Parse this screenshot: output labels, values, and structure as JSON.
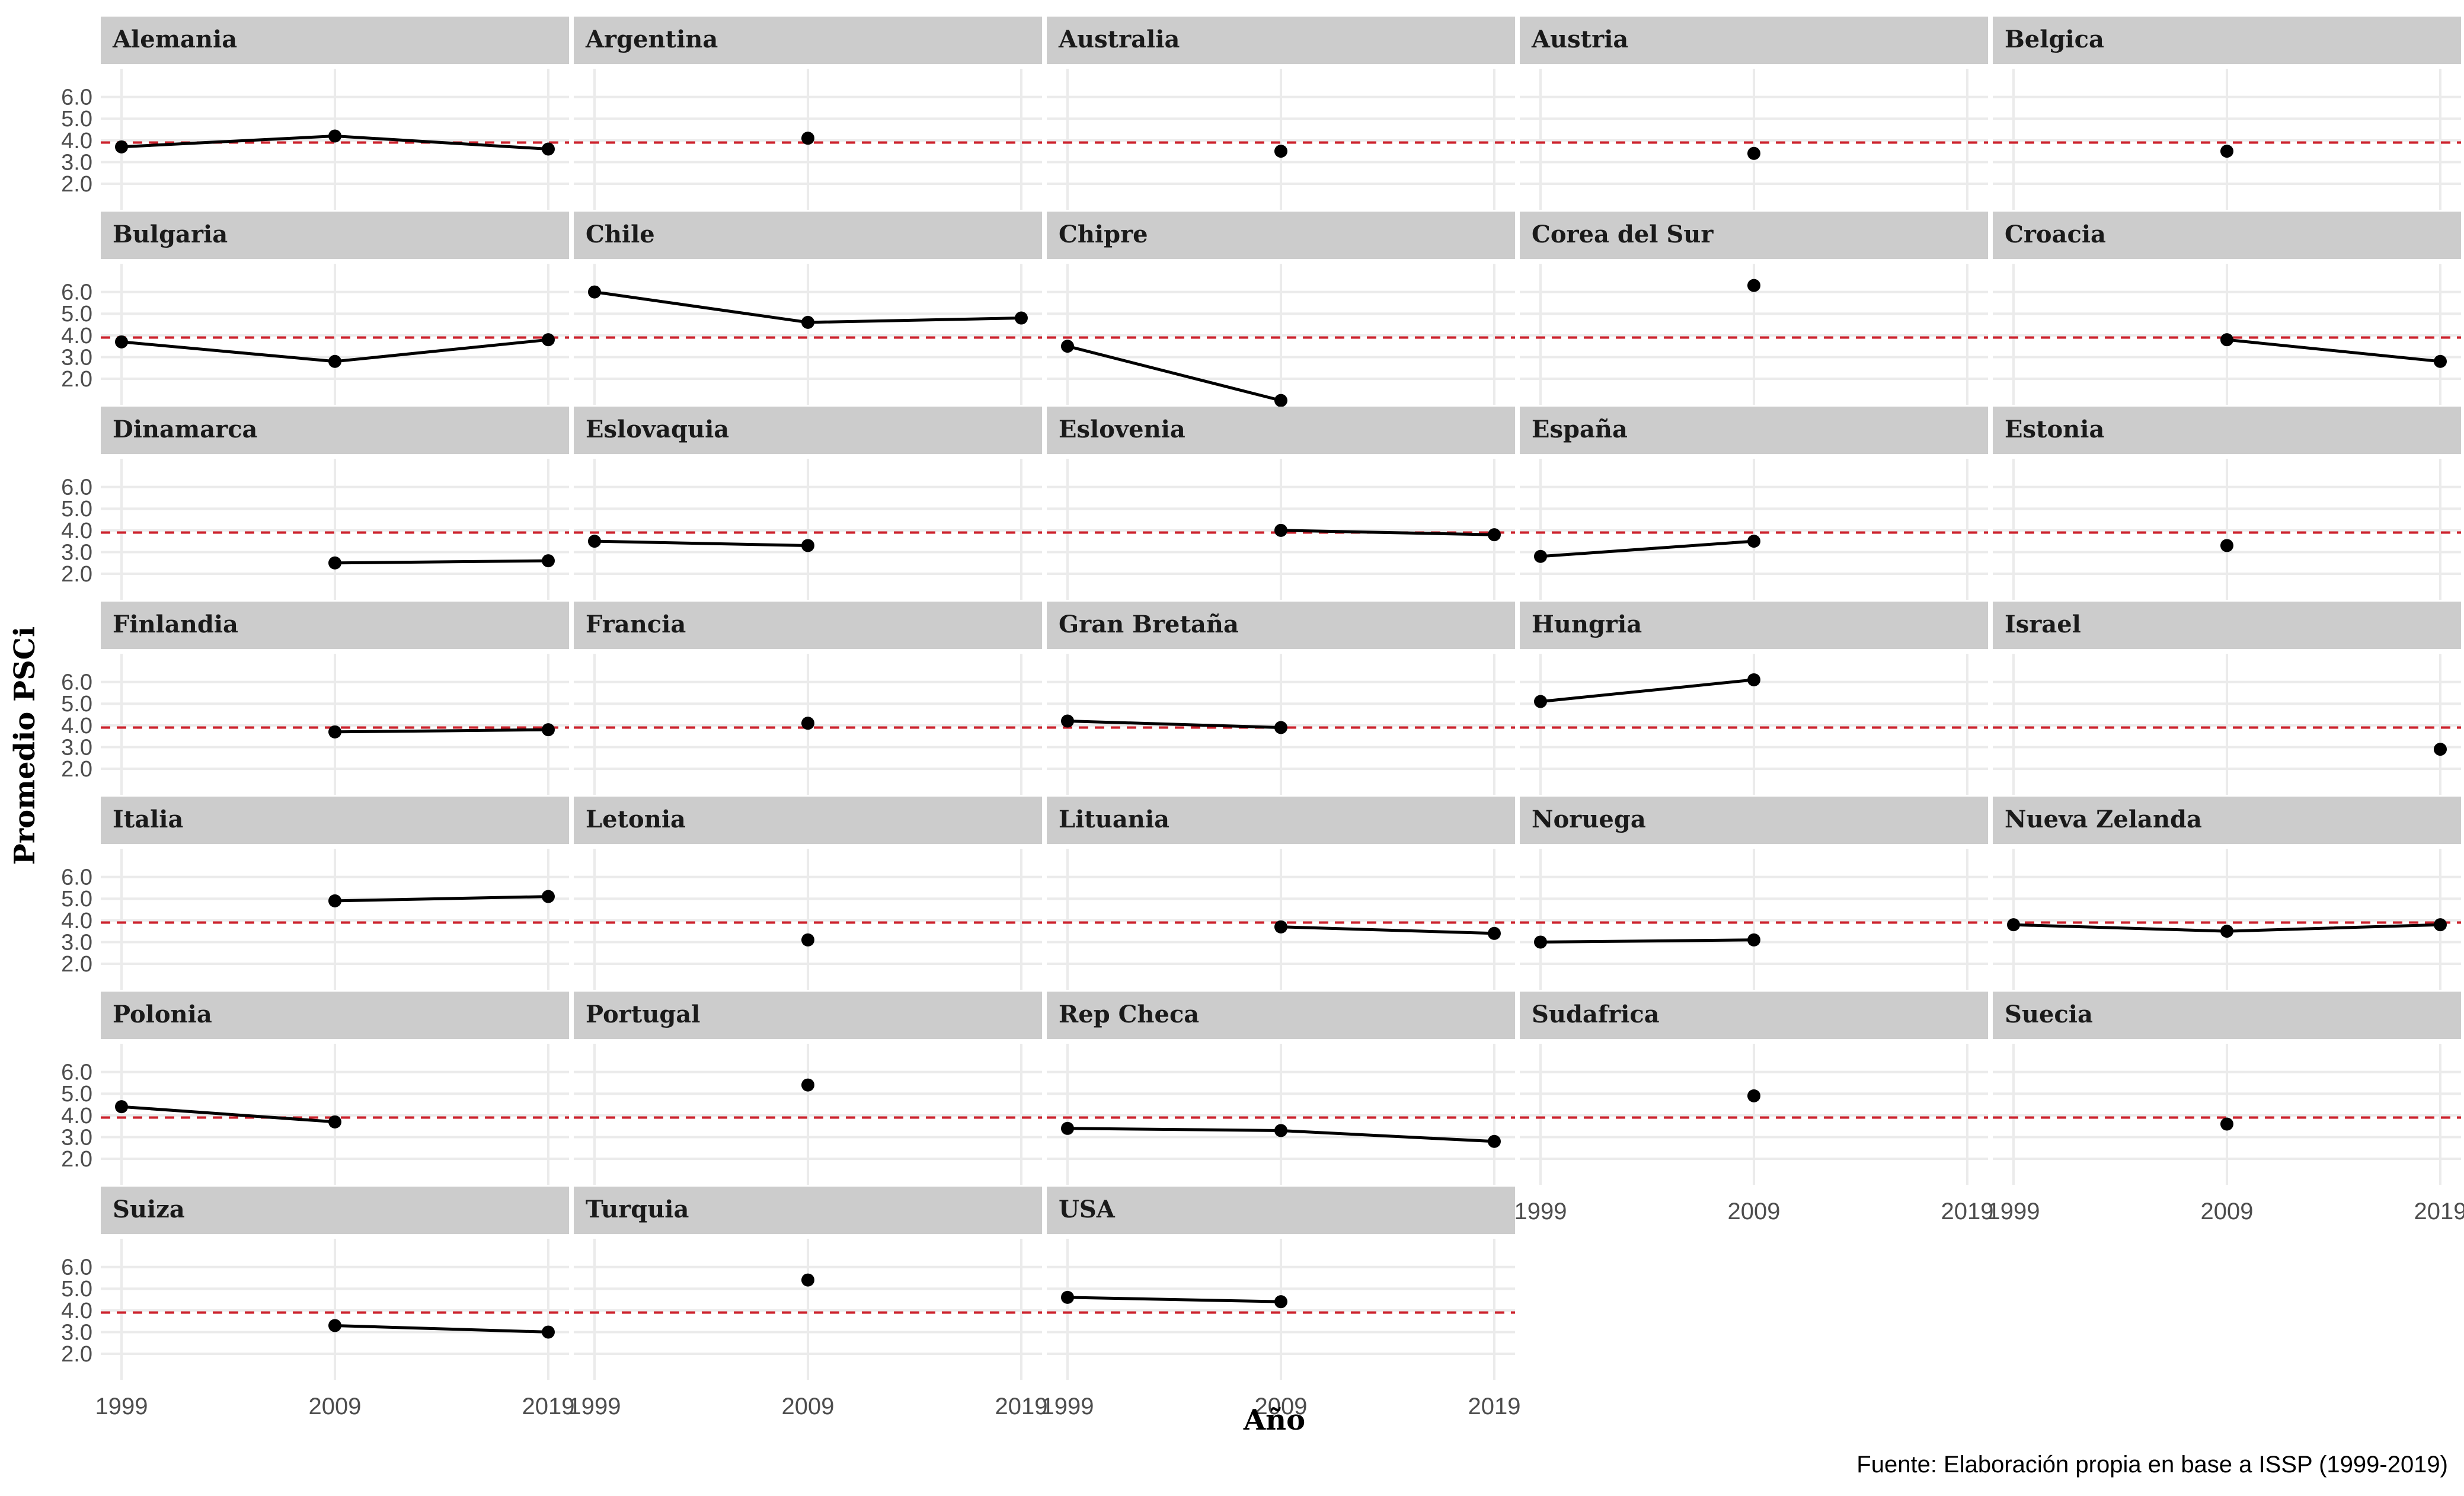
{
  "chart_data": {
    "type": "line",
    "facet": "country",
    "xlabel": "Año",
    "ylabel": "Promedio PSCi",
    "caption": "Fuente: Elaboración propia en base a ISSP (1999-2019)",
    "x_ticks": [
      "1999",
      "2009",
      "2019"
    ],
    "y_ticks": [
      "2.0",
      "3.0",
      "4.0",
      "5.0",
      "6.0"
    ],
    "ylim": [
      0.8,
      7.3
    ],
    "reference_line": {
      "y": 3.9,
      "style": "dashed",
      "color": "#cc1f2a"
    },
    "colors": {
      "strip_bg": "#cccccc",
      "grid": "#ebebeb",
      "line": "#000000",
      "point": "#000000"
    },
    "ncol": 5,
    "panels": [
      {
        "name": "Alemania",
        "points": [
          {
            "x": 1999,
            "y": 3.7
          },
          {
            "x": 2009,
            "y": 4.2
          },
          {
            "x": 2019,
            "y": 3.6
          }
        ]
      },
      {
        "name": "Argentina",
        "points": [
          {
            "x": 2009,
            "y": 4.1
          }
        ]
      },
      {
        "name": "Australia",
        "points": [
          {
            "x": 2009,
            "y": 3.5
          }
        ]
      },
      {
        "name": "Austria",
        "points": [
          {
            "x": 2009,
            "y": 3.4
          }
        ]
      },
      {
        "name": "Belgica",
        "points": [
          {
            "x": 2009,
            "y": 3.5
          }
        ]
      },
      {
        "name": "Bulgaria",
        "points": [
          {
            "x": 1999,
            "y": 3.7
          },
          {
            "x": 2009,
            "y": 2.8
          },
          {
            "x": 2019,
            "y": 3.8
          }
        ]
      },
      {
        "name": "Chile",
        "points": [
          {
            "x": 1999,
            "y": 6.0
          },
          {
            "x": 2009,
            "y": 4.6
          },
          {
            "x": 2019,
            "y": 4.8
          }
        ]
      },
      {
        "name": "Chipre",
        "points": [
          {
            "x": 1999,
            "y": 3.5
          },
          {
            "x": 2009,
            "y": 1.0
          }
        ]
      },
      {
        "name": "Corea del Sur",
        "points": [
          {
            "x": 2009,
            "y": 6.3
          }
        ]
      },
      {
        "name": "Croacia",
        "points": [
          {
            "x": 2009,
            "y": 3.8
          },
          {
            "x": 2019,
            "y": 2.8
          }
        ]
      },
      {
        "name": "Dinamarca",
        "points": [
          {
            "x": 2009,
            "y": 2.5
          },
          {
            "x": 2019,
            "y": 2.6
          }
        ]
      },
      {
        "name": "Eslovaquia",
        "points": [
          {
            "x": 1999,
            "y": 3.5
          },
          {
            "x": 2009,
            "y": 3.3
          }
        ]
      },
      {
        "name": "Eslovenia",
        "points": [
          {
            "x": 2009,
            "y": 4.0
          },
          {
            "x": 2019,
            "y": 3.8
          }
        ]
      },
      {
        "name": "España",
        "points": [
          {
            "x": 1999,
            "y": 2.8
          },
          {
            "x": 2009,
            "y": 3.5
          }
        ]
      },
      {
        "name": "Estonia",
        "points": [
          {
            "x": 2009,
            "y": 3.3
          }
        ]
      },
      {
        "name": "Finlandia",
        "points": [
          {
            "x": 2009,
            "y": 3.7
          },
          {
            "x": 2019,
            "y": 3.8
          }
        ]
      },
      {
        "name": "Francia",
        "points": [
          {
            "x": 2009,
            "y": 4.1
          }
        ]
      },
      {
        "name": "Gran Bretaña",
        "points": [
          {
            "x": 1999,
            "y": 4.2
          },
          {
            "x": 2009,
            "y": 3.9
          }
        ]
      },
      {
        "name": "Hungria",
        "points": [
          {
            "x": 1999,
            "y": 5.1
          },
          {
            "x": 2009,
            "y": 6.1
          }
        ]
      },
      {
        "name": "Israel",
        "points": [
          {
            "x": 2019,
            "y": 2.9
          }
        ]
      },
      {
        "name": "Italia",
        "points": [
          {
            "x": 2009,
            "y": 4.9
          },
          {
            "x": 2019,
            "y": 5.1
          }
        ]
      },
      {
        "name": "Letonia",
        "points": [
          {
            "x": 2009,
            "y": 3.1
          }
        ]
      },
      {
        "name": "Lituania",
        "points": [
          {
            "x": 2009,
            "y": 3.7
          },
          {
            "x": 2019,
            "y": 3.4
          }
        ]
      },
      {
        "name": "Noruega",
        "points": [
          {
            "x": 1999,
            "y": 3.0
          },
          {
            "x": 2009,
            "y": 3.1
          }
        ]
      },
      {
        "name": "Nueva Zelanda",
        "points": [
          {
            "x": 1999,
            "y": 3.8
          },
          {
            "x": 2009,
            "y": 3.5
          },
          {
            "x": 2019,
            "y": 3.8
          }
        ]
      },
      {
        "name": "Polonia",
        "points": [
          {
            "x": 1999,
            "y": 4.4
          },
          {
            "x": 2009,
            "y": 3.7
          }
        ]
      },
      {
        "name": "Portugal",
        "points": [
          {
            "x": 2009,
            "y": 5.4
          }
        ]
      },
      {
        "name": "Rep Checa",
        "points": [
          {
            "x": 1999,
            "y": 3.4
          },
          {
            "x": 2009,
            "y": 3.3
          },
          {
            "x": 2019,
            "y": 2.8
          }
        ]
      },
      {
        "name": "Sudafrica",
        "points": [
          {
            "x": 2009,
            "y": 4.9
          }
        ]
      },
      {
        "name": "Suecia",
        "points": [
          {
            "x": 2009,
            "y": 3.6
          }
        ]
      },
      {
        "name": "Suiza",
        "points": [
          {
            "x": 2009,
            "y": 3.3
          },
          {
            "x": 2019,
            "y": 3.0
          }
        ]
      },
      {
        "name": "Turquia",
        "points": [
          {
            "x": 2009,
            "y": 5.4
          }
        ]
      },
      {
        "name": "USA",
        "points": [
          {
            "x": 1999,
            "y": 4.6
          },
          {
            "x": 2009,
            "y": 4.4
          }
        ]
      }
    ]
  }
}
